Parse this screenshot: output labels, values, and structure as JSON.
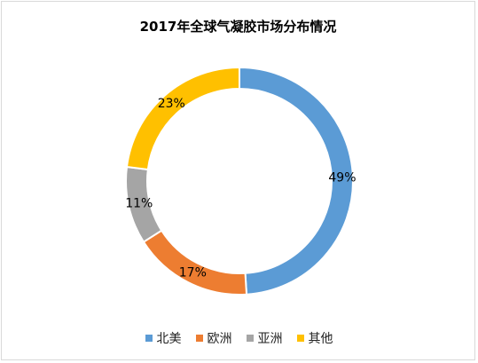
{
  "chart_data": {
    "type": "pie",
    "variant": "donut",
    "title": "2017年全球气凝胶市场分布情况",
    "categories": [
      "北美",
      "欧洲",
      "亚洲",
      "其他"
    ],
    "values": [
      49,
      17,
      11,
      23
    ],
    "value_labels": [
      "49%",
      "17%",
      "11%",
      "23%"
    ],
    "colors": [
      "#5B9BD5",
      "#ED7D31",
      "#A5A5A5",
      "#FFC000"
    ],
    "legend_position": "bottom"
  }
}
